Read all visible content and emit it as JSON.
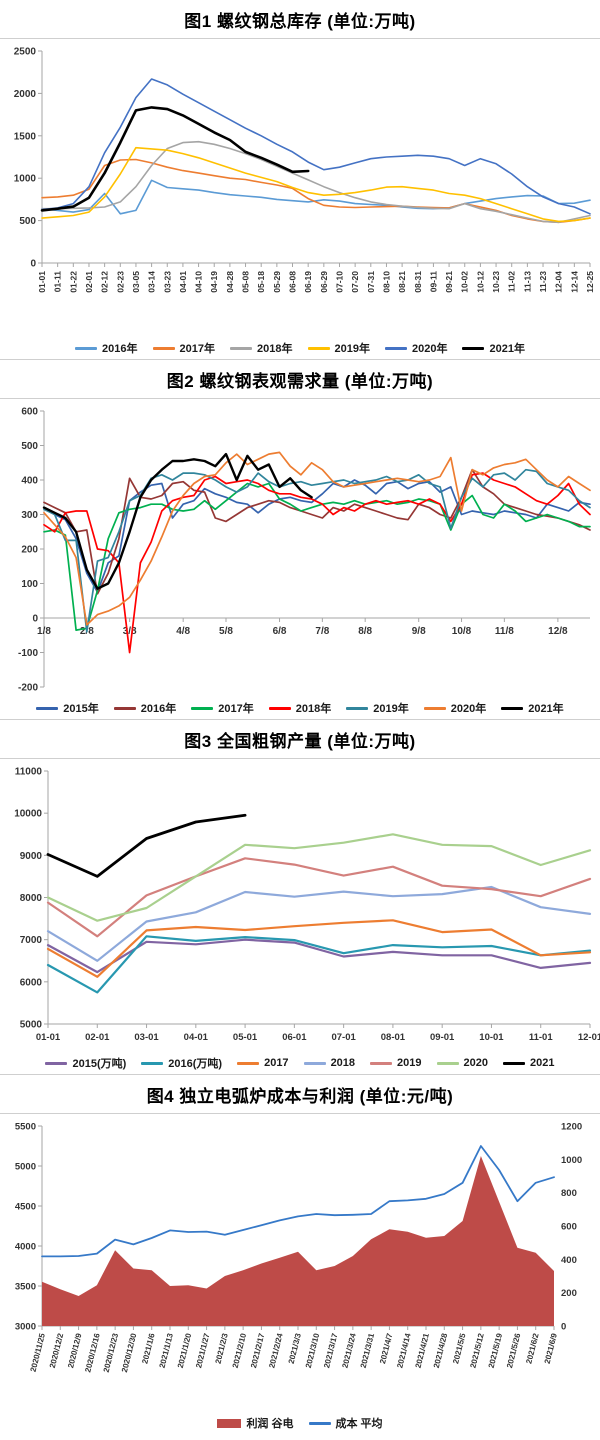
{
  "page": {
    "background": "#ffffff",
    "separator_color": "#cfcfcf"
  },
  "chart_data": [
    {
      "id": "rebar-total-inventory",
      "type": "line",
      "title": "图1 螺纹钢总库存 (单位:万吨)",
      "xlabel": "",
      "ylabel": "",
      "ylim": [
        0,
        2500
      ],
      "yticks": [
        0,
        500,
        1000,
        1500,
        2000,
        2500
      ],
      "grid": false,
      "legend_position": "bottom",
      "categories": [
        "01-01",
        "01-11",
        "01-22",
        "02-01",
        "02-12",
        "02-23",
        "03-05",
        "03-14",
        "03-23",
        "04-01",
        "04-10",
        "04-19",
        "04-28",
        "05-08",
        "05-18",
        "05-29",
        "06-08",
        "06-19",
        "06-29",
        "07-10",
        "07-20",
        "07-31",
        "08-10",
        "08-21",
        "08-31",
        "09-11",
        "09-21",
        "10-02",
        "10-12",
        "10-23",
        "11-02",
        "11-13",
        "11-23",
        "12-04",
        "12-14",
        "12-25"
      ],
      "series": [
        {
          "name": "2016年",
          "color": "#5B9BD5",
          "swatch": "line",
          "values": [
            640,
            620,
            600,
            630,
            820,
            580,
            620,
            975,
            890,
            875,
            860,
            830,
            805,
            790,
            775,
            750,
            735,
            720,
            745,
            730,
            700,
            690,
            680,
            660,
            645,
            640,
            650,
            700,
            730,
            760,
            780,
            795,
            790,
            700,
            705,
            740
          ]
        },
        {
          "name": "2017年",
          "color": "#ED7D31",
          "swatch": "line",
          "values": [
            770,
            780,
            800,
            870,
            1150,
            1215,
            1220,
            1180,
            1130,
            1090,
            1060,
            1030,
            1000,
            985,
            950,
            920,
            880,
            760,
            680,
            660,
            655,
            660,
            665,
            670,
            660,
            655,
            650,
            700,
            660,
            620,
            560,
            520,
            490,
            480,
            500,
            530
          ]
        },
        {
          "name": "2018年",
          "color": "#A5A5A5",
          "swatch": "line",
          "values": [
            640,
            640,
            645,
            650,
            660,
            720,
            900,
            1150,
            1350,
            1420,
            1430,
            1400,
            1350,
            1290,
            1220,
            1140,
            1060,
            980,
            900,
            830,
            770,
            720,
            690,
            670,
            655,
            645,
            640,
            700,
            640,
            610,
            570,
            530,
            490,
            480,
            520,
            560
          ]
        },
        {
          "name": "2019年",
          "color": "#FFC000",
          "swatch": "line",
          "values": [
            530,
            545,
            560,
            600,
            780,
            1050,
            1360,
            1345,
            1330,
            1290,
            1240,
            1180,
            1120,
            1060,
            1010,
            960,
            890,
            830,
            800,
            810,
            830,
            860,
            895,
            900,
            880,
            860,
            820,
            800,
            760,
            700,
            640,
            580,
            520,
            490,
            500,
            530
          ]
        },
        {
          "name": "2020年",
          "color": "#4472C4",
          "swatch": "line",
          "values": [
            630,
            650,
            700,
            900,
            1300,
            1600,
            1950,
            2170,
            2100,
            1990,
            1890,
            1790,
            1690,
            1590,
            1500,
            1400,
            1310,
            1190,
            1100,
            1130,
            1180,
            1230,
            1250,
            1260,
            1270,
            1260,
            1230,
            1150,
            1230,
            1170,
            1050,
            900,
            780,
            700,
            660,
            580
          ]
        },
        {
          "name": "2021年",
          "color": "#000000",
          "swatch": "line",
          "lw": 2.6,
          "values": [
            620,
            640,
            665,
            770,
            1060,
            1420,
            1800,
            1835,
            1815,
            1740,
            1640,
            1540,
            1450,
            1310,
            1240,
            1160,
            1075,
            1085
          ]
        }
      ]
    },
    {
      "id": "rebar-apparent-demand",
      "type": "line",
      "title": "图2 螺纹钢表观需求量 (单位:万吨)",
      "xlabel": "",
      "ylabel": "",
      "ylim": [
        -200,
        600
      ],
      "yticks": [
        -200,
        -100,
        0,
        100,
        200,
        300,
        400,
        500,
        600
      ],
      "x_axis_at": 0,
      "grid": false,
      "legend_position": "bottom",
      "categories": [
        "1/8",
        "1/15",
        "1/22",
        "1/29",
        "2/5",
        "2/12",
        "2/19",
        "2/26",
        "3/5",
        "3/12",
        "3/19",
        "3/26",
        "4/2",
        "4/9",
        "4/16",
        "4/23",
        "4/30",
        "5/7",
        "5/14",
        "5/21",
        "5/28",
        "6/4",
        "6/11",
        "6/18",
        "6/25",
        "7/2",
        "7/9",
        "7/16",
        "7/23",
        "7/30",
        "8/6",
        "8/13",
        "8/20",
        "8/27",
        "9/3",
        "9/10",
        "9/17",
        "9/24",
        "10/1",
        "10/8",
        "10/15",
        "10/22",
        "10/29",
        "11/5",
        "11/12",
        "11/19",
        "11/26",
        "12/3",
        "12/10",
        "12/17",
        "12/24",
        "12/31"
      ],
      "xtick_indices": [
        0,
        4,
        8,
        13,
        17,
        22,
        26,
        30,
        35,
        39,
        43,
        48
      ],
      "xtick_labels": [
        "1/8",
        "2/8",
        "3/8",
        "4/8",
        "5/8",
        "6/8",
        "7/8",
        "8/8",
        "9/8",
        "10/8",
        "11/8",
        "12/8"
      ],
      "series": [
        {
          "name": "2015年",
          "color": "#3563AE",
          "swatch": "line",
          "values": [
            320,
            300,
            285,
            230,
            130,
            75,
            160,
            180,
            340,
            365,
            385,
            390,
            290,
            330,
            340,
            375,
            360,
            350,
            335,
            330,
            305,
            330,
            345,
            350,
            340,
            335,
            360,
            390,
            380,
            400,
            385,
            360,
            390,
            395,
            375,
            390,
            395,
            365,
            380,
            300,
            310,
            305,
            300,
            310,
            305,
            300,
            290,
            330,
            320,
            310,
            335,
            330
          ]
        },
        {
          "name": "2016年",
          "color": "#953735",
          "swatch": "line",
          "values": [
            335,
            320,
            305,
            250,
            255,
            70,
            130,
            230,
            405,
            350,
            345,
            355,
            390,
            395,
            370,
            365,
            290,
            280,
            300,
            320,
            330,
            340,
            335,
            320,
            310,
            300,
            290,
            320,
            310,
            330,
            320,
            310,
            300,
            290,
            285,
            330,
            320,
            300,
            290,
            350,
            430,
            380,
            360,
            330,
            320,
            310,
            300,
            295,
            290,
            280,
            270,
            255
          ]
        },
        {
          "name": "2017年",
          "color": "#00B050",
          "swatch": "line",
          "values": [
            250,
            255,
            240,
            -35,
            -30,
            80,
            230,
            305,
            315,
            320,
            330,
            330,
            315,
            310,
            315,
            340,
            315,
            340,
            365,
            390,
            380,
            390,
            345,
            330,
            310,
            320,
            330,
            335,
            330,
            340,
            330,
            335,
            340,
            330,
            335,
            345,
            340,
            330,
            255,
            330,
            355,
            300,
            290,
            330,
            310,
            280,
            290,
            300,
            290,
            280,
            265,
            265
          ]
        },
        {
          "name": "2018年",
          "color": "#FF0000",
          "swatch": "line",
          "values": [
            270,
            250,
            305,
            310,
            310,
            200,
            195,
            160,
            -100,
            160,
            220,
            310,
            340,
            350,
            355,
            400,
            410,
            390,
            395,
            400,
            390,
            370,
            360,
            360,
            350,
            345,
            330,
            300,
            320,
            310,
            330,
            340,
            330,
            335,
            340,
            330,
            345,
            330,
            280,
            330,
            415,
            420,
            400,
            390,
            380,
            360,
            340,
            330,
            355,
            390,
            330,
            300
          ]
        },
        {
          "name": "2019年",
          "color": "#31859C",
          "swatch": "line",
          "values": [
            315,
            300,
            225,
            225,
            -40,
            165,
            175,
            250,
            340,
            355,
            405,
            415,
            400,
            420,
            420,
            415,
            400,
            380,
            365,
            380,
            420,
            395,
            380,
            390,
            395,
            385,
            390,
            395,
            400,
            390,
            395,
            400,
            410,
            395,
            400,
            415,
            390,
            380,
            260,
            350,
            405,
            380,
            415,
            420,
            400,
            430,
            425,
            390,
            380,
            370,
            340,
            320
          ]
        },
        {
          "name": "2020年",
          "color": "#ED7D31",
          "swatch": "line",
          "values": [
            305,
            270,
            235,
            175,
            -20,
            10,
            20,
            35,
            60,
            110,
            165,
            235,
            310,
            355,
            390,
            410,
            415,
            450,
            475,
            445,
            460,
            475,
            480,
            440,
            415,
            450,
            430,
            395,
            380,
            385,
            390,
            395,
            400,
            405,
            400,
            395,
            400,
            410,
            465,
            310,
            430,
            415,
            435,
            445,
            450,
            460,
            430,
            400,
            380,
            410,
            390,
            370
          ]
        },
        {
          "name": "2021年",
          "color": "#000000",
          "swatch": "line",
          "lw": 2.4,
          "values": [
            320,
            305,
            290,
            250,
            140,
            85,
            100,
            160,
            250,
            350,
            400,
            430,
            455,
            455,
            460,
            455,
            440,
            475,
            400,
            470,
            430,
            445,
            380,
            405,
            370,
            350
          ]
        }
      ]
    },
    {
      "id": "national-crude-steel-output",
      "type": "line",
      "title": "图3 全国粗钢产量 (单位:万吨)",
      "xlabel": "",
      "ylabel": "",
      "ylim": [
        5000,
        11000
      ],
      "yticks": [
        5000,
        6000,
        7000,
        8000,
        9000,
        10000,
        11000
      ],
      "grid": false,
      "legend_position": "bottom",
      "categories": [
        "01-01",
        "02-01",
        "03-01",
        "04-01",
        "05-01",
        "06-01",
        "07-01",
        "08-01",
        "09-01",
        "10-01",
        "11-01",
        "12-01"
      ],
      "series": [
        {
          "name": "2015(万吨)",
          "color": "#8064A2",
          "swatch": "line",
          "values": [
            6870,
            6230,
            6950,
            6890,
            7000,
            6930,
            6600,
            6710,
            6630,
            6630,
            6330,
            6450
          ]
        },
        {
          "name": "2016(万吨)",
          "color": "#2898B0",
          "swatch": "line",
          "values": [
            6400,
            5750,
            7080,
            6970,
            7060,
            6990,
            6680,
            6870,
            6820,
            6850,
            6630,
            6740
          ]
        },
        {
          "name": "2017",
          "color": "#ED7D31",
          "swatch": "line",
          "values": [
            6780,
            6120,
            7220,
            7300,
            7230,
            7320,
            7400,
            7460,
            7180,
            7240,
            6630,
            6700
          ]
        },
        {
          "name": "2018",
          "color": "#8EA9DB",
          "swatch": "line",
          "values": [
            7200,
            6500,
            7430,
            7650,
            8130,
            8020,
            8140,
            8030,
            8080,
            8250,
            7770,
            7610
          ]
        },
        {
          "name": "2019",
          "color": "#D3807D",
          "swatch": "line",
          "values": [
            7880,
            7080,
            8050,
            8500,
            8930,
            8780,
            8520,
            8730,
            8280,
            8200,
            8030,
            8440
          ]
        },
        {
          "name": "2020",
          "color": "#A9D08E",
          "swatch": "line",
          "values": [
            8000,
            7450,
            7750,
            8500,
            9250,
            9170,
            9300,
            9500,
            9250,
            9220,
            8770,
            9120
          ]
        },
        {
          "name": "2021",
          "color": "#000000",
          "swatch": "line",
          "lw": 2.8,
          "values": [
            9020,
            8500,
            9400,
            9790,
            9950
          ]
        }
      ]
    },
    {
      "id": "eaf-cost-and-profit",
      "type": "area",
      "title": "图4 独立电弧炉成本与利润 (单位:元/吨)",
      "xlabel": "",
      "ylabel": "",
      "ylim": [
        3000,
        5500
      ],
      "yticks": [
        3000,
        3500,
        4000,
        4500,
        5000,
        5500
      ],
      "y2lim": [
        0,
        1200
      ],
      "y2ticks": [
        0,
        200,
        400,
        600,
        800,
        1000,
        1200
      ],
      "grid": false,
      "legend_position": "bottom",
      "categories": [
        "2020/11/25",
        "2020/12/2",
        "2020/12/9",
        "2020/12/16",
        "2020/12/23",
        "2020/12/30",
        "2021/1/6",
        "2021/1/13",
        "2021/1/20",
        "2021/1/27",
        "2021/2/3",
        "2021/2/10",
        "2021/2/17",
        "2021/2/24",
        "2021/3/3",
        "2021/3/10",
        "2021/3/17",
        "2021/3/24",
        "2021/3/31",
        "2021/4/7",
        "2021/4/14",
        "2021/4/21",
        "2021/4/28",
        "2021/5/5",
        "2021/5/12",
        "2021/5/19",
        "2021/5/26",
        "2021/6/2",
        "2021/6/9"
      ],
      "series": [
        {
          "name": "利润 谷电",
          "color": "#BE4B48",
          "swatch": "rect",
          "type": "area",
          "axis": "right",
          "values": [
            265,
            220,
            180,
            245,
            455,
            345,
            335,
            240,
            245,
            225,
            300,
            335,
            375,
            410,
            445,
            335,
            360,
            420,
            520,
            580,
            565,
            530,
            540,
            630,
            1020,
            745,
            470,
            440,
            330
          ]
        },
        {
          "name": "成本 平均",
          "color": "#3679C8",
          "swatch": "line",
          "type": "line",
          "axis": "left",
          "values": [
            3870,
            3870,
            3875,
            3905,
            4080,
            4020,
            4100,
            4195,
            4175,
            4180,
            4140,
            4200,
            4260,
            4320,
            4370,
            4400,
            4385,
            4390,
            4400,
            4560,
            4570,
            4590,
            4650,
            4790,
            5250,
            4950,
            4560,
            4790,
            4860
          ]
        }
      ]
    }
  ]
}
